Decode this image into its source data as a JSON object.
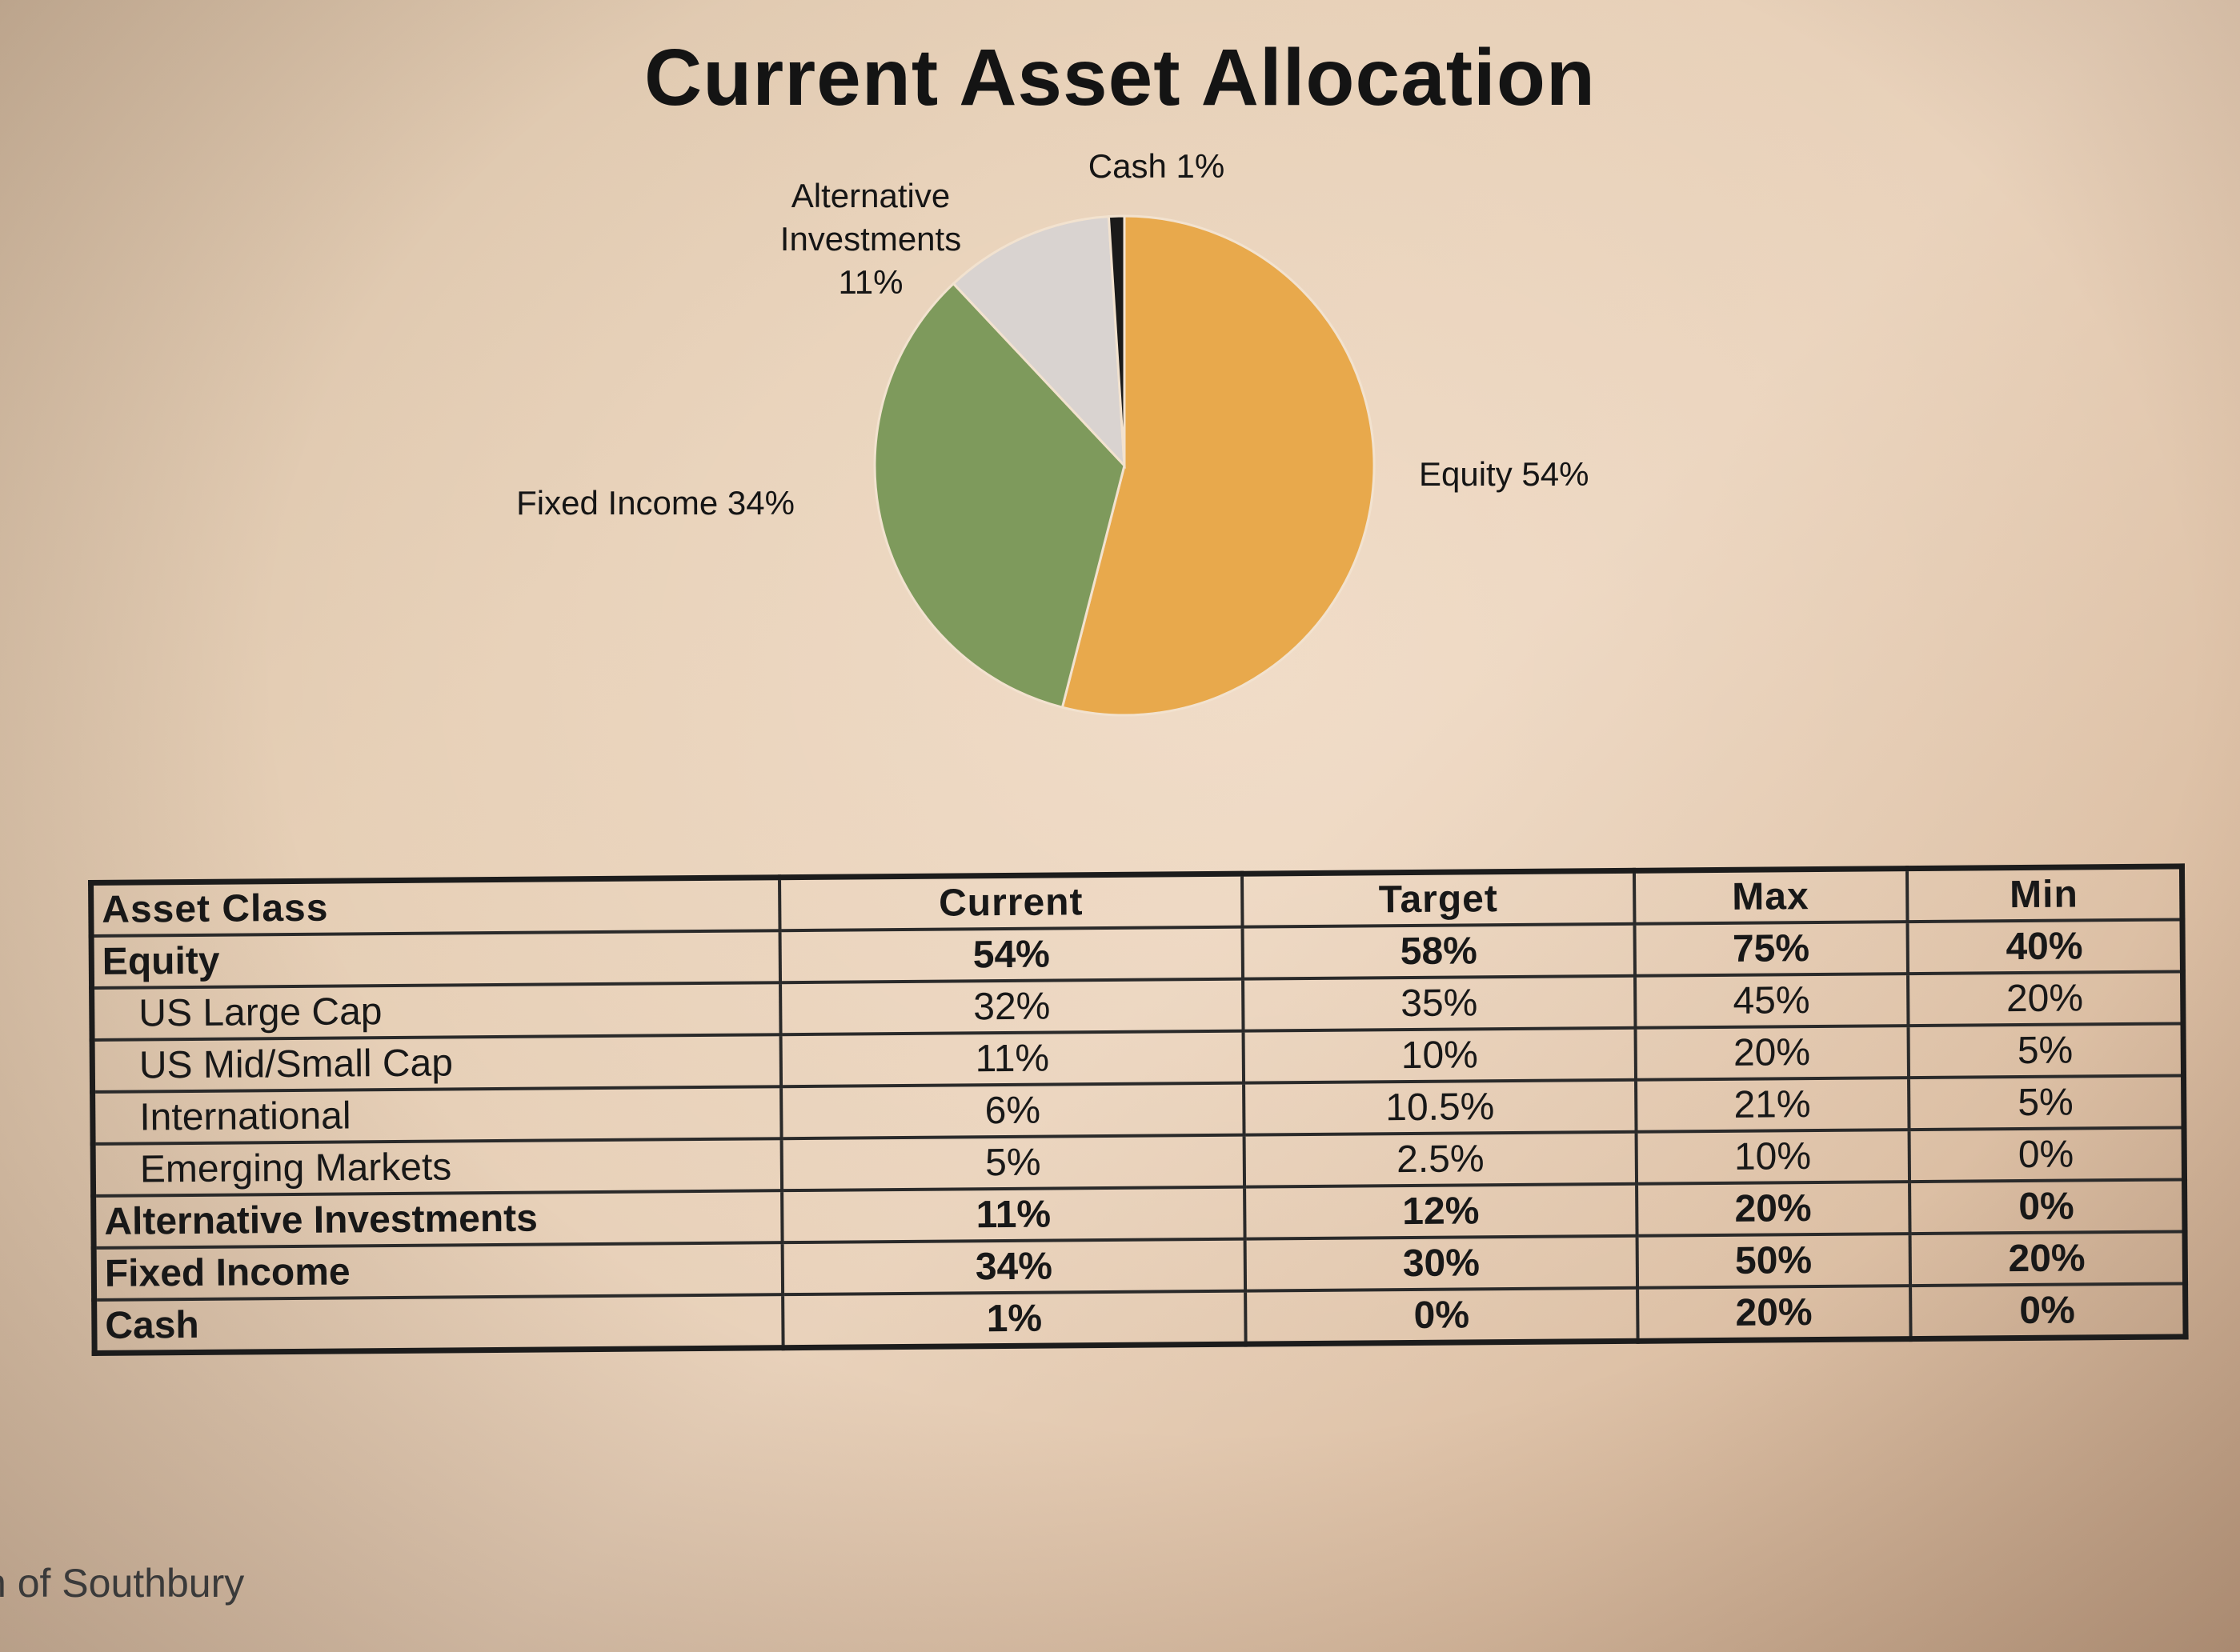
{
  "chart_data": {
    "type": "pie",
    "title": "Current Asset Allocation",
    "slices": [
      {
        "label": "Equity",
        "value": 54,
        "display": "Equity 54%",
        "color": "#e8a94c"
      },
      {
        "label": "Fixed Income",
        "value": 34,
        "display": "Fixed Income 34%",
        "color": "#7e9a5c"
      },
      {
        "label": "Alternative Investments",
        "value": 11,
        "display_lines": [
          "Alternative",
          "Investments",
          "11%"
        ],
        "color": "#d9d3d0"
      },
      {
        "label": "Cash",
        "value": 1,
        "display": "Cash 1%",
        "color": "#1a1a1a"
      }
    ]
  },
  "table": {
    "headers": [
      "Asset Class",
      "Current",
      "Target",
      "Max",
      "Min"
    ],
    "rows": [
      {
        "name": "Equity",
        "bold": true,
        "indent": false,
        "values": [
          "54%",
          "58%",
          "75%",
          "40%"
        ]
      },
      {
        "name": "US Large Cap",
        "bold": false,
        "indent": true,
        "values": [
          "32%",
          "35%",
          "45%",
          "20%"
        ]
      },
      {
        "name": "US Mid/Small Cap",
        "bold": false,
        "indent": true,
        "values": [
          "11%",
          "10%",
          "20%",
          "5%"
        ]
      },
      {
        "name": "International",
        "bold": false,
        "indent": true,
        "values": [
          "6%",
          "10.5%",
          "21%",
          "5%"
        ]
      },
      {
        "name": "Emerging Markets",
        "bold": false,
        "indent": true,
        "values": [
          "5%",
          "2.5%",
          "10%",
          "0%"
        ]
      },
      {
        "name": "Alternative Investments",
        "bold": true,
        "indent": false,
        "values": [
          "11%",
          "12%",
          "20%",
          "0%"
        ]
      },
      {
        "name": "Fixed Income",
        "bold": true,
        "indent": false,
        "values": [
          "34%",
          "30%",
          "50%",
          "20%"
        ]
      },
      {
        "name": "Cash",
        "bold": true,
        "indent": false,
        "values": [
          "1%",
          "0%",
          "20%",
          "0%"
        ]
      }
    ]
  },
  "footer": {
    "text": "n of Southbury"
  }
}
